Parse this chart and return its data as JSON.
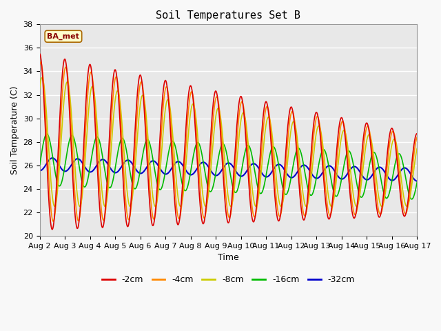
{
  "title": "Soil Temperatures Set B",
  "xlabel": "Time",
  "ylabel": "Soil Temperature (C)",
  "annotation": "BA_met",
  "ylim": [
    20,
    38
  ],
  "xlim": [
    0,
    360
  ],
  "x_tick_labels": [
    "Aug 2",
    "Aug 3",
    "Aug 4",
    "Aug 5",
    "Aug 6",
    "Aug 7",
    "Aug 8",
    "Aug 9",
    "Aug 10",
    "Aug 11",
    "Aug 12",
    "Aug 13",
    "Aug 14",
    "Aug 15",
    "Aug 16",
    "Aug 17"
  ],
  "x_tick_positions": [
    0,
    24,
    48,
    72,
    96,
    120,
    144,
    168,
    192,
    216,
    240,
    264,
    288,
    312,
    336,
    360
  ],
  "series": {
    "-2cm": {
      "color": "#dd0000",
      "lw": 1.2
    },
    "-4cm": {
      "color": "#ff8800",
      "lw": 1.2
    },
    "-8cm": {
      "color": "#cccc00",
      "lw": 1.2
    },
    "-16cm": {
      "color": "#00bb00",
      "lw": 1.2
    },
    "-32cm": {
      "color": "#0000cc",
      "lw": 1.5
    }
  },
  "fig_bg_color": "#f8f8f8",
  "plot_bg_color": "#e8e8e8",
  "grid_color": "#ffffff",
  "yticks": [
    20,
    22,
    24,
    26,
    28,
    30,
    32,
    34,
    36,
    38
  ],
  "title_fontsize": 11,
  "label_fontsize": 9,
  "tick_fontsize": 8
}
